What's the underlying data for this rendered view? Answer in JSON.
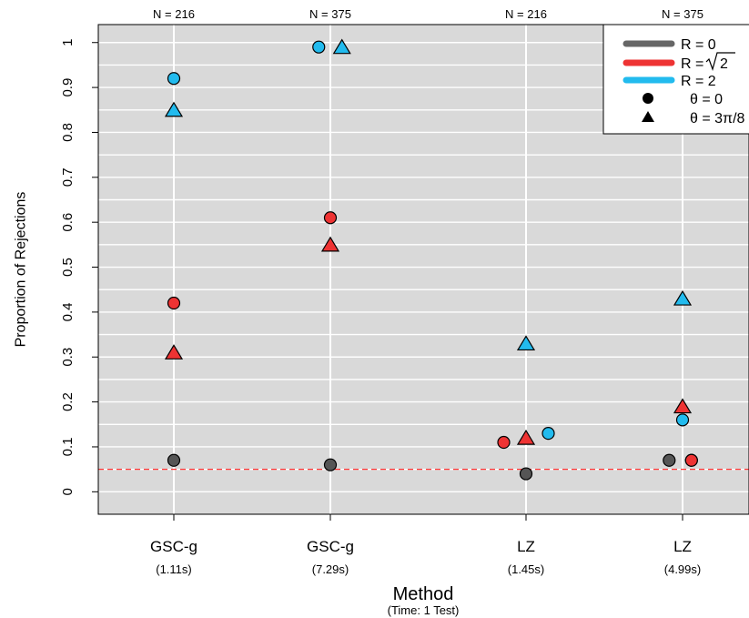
{
  "chart_data": {
    "type": "scatter",
    "xlabel": "Method",
    "xlabel_sub": "(Time: 1 Test)",
    "ylabel": "Proportion of Rejections",
    "ylim": [
      -0.05,
      1.04
    ],
    "yticks": [
      0,
      0.1,
      0.2,
      0.3,
      0.4,
      0.5,
      0.6,
      0.7,
      0.8,
      0.9,
      1
    ],
    "reference_line": {
      "y": 0.05,
      "color": "#ff3333",
      "style": "dashed"
    },
    "background": "#d9d9d9",
    "grid": true,
    "legend_position": "top-right",
    "groups": [
      {
        "method": "GSC-g",
        "time": "(1.11s)",
        "n_label": "N = 216"
      },
      {
        "method": "GSC-g",
        "time": "(7.29s)",
        "n_label": "N = 375"
      },
      {
        "method": "LZ",
        "time": "(1.45s)",
        "n_label": "N = 216"
      },
      {
        "method": "LZ",
        "time": "(4.99s)",
        "n_label": "N = 375"
      }
    ],
    "series": [
      {
        "name": "R = 0",
        "color": "#555555",
        "points": [
          {
            "group": 0,
            "theta": "circle",
            "y": 0.07,
            "dx": 0
          },
          {
            "group": 1,
            "theta": "circle",
            "y": 0.06,
            "dx": 0
          },
          {
            "group": 2,
            "theta": "circle",
            "y": 0.04,
            "dx": 0
          },
          {
            "group": 3,
            "theta": "circle",
            "y": 0.07,
            "dx": -0.15
          },
          {
            "group": 3,
            "theta": "circle",
            "y": 0.07,
            "dx": 0.1
          }
        ]
      },
      {
        "name": "R = √2",
        "color": "#ee3333",
        "points": [
          {
            "group": 0,
            "theta": "circle",
            "y": 0.42,
            "dx": 0
          },
          {
            "group": 0,
            "theta": "triangle",
            "y": 0.31,
            "dx": 0
          },
          {
            "group": 1,
            "theta": "circle",
            "y": 0.61,
            "dx": 0
          },
          {
            "group": 1,
            "theta": "triangle",
            "y": 0.55,
            "dx": 0
          },
          {
            "group": 2,
            "theta": "circle",
            "y": 0.11,
            "dx": -0.25
          },
          {
            "group": 2,
            "theta": "triangle",
            "y": 0.12,
            "dx": 0
          },
          {
            "group": 3,
            "theta": "triangle",
            "y": 0.19,
            "dx": 0
          },
          {
            "group": 3,
            "theta": "circle",
            "y": 0.07,
            "dx": 0.1
          }
        ]
      },
      {
        "name": "R = 2",
        "color": "#22bbee",
        "points": [
          {
            "group": 0,
            "theta": "circle",
            "y": 0.92,
            "dx": 0
          },
          {
            "group": 0,
            "theta": "triangle",
            "y": 0.85,
            "dx": 0
          },
          {
            "group": 1,
            "theta": "circle",
            "y": 0.99,
            "dx": -0.13
          },
          {
            "group": 1,
            "theta": "triangle",
            "y": 0.99,
            "dx": 0.13
          },
          {
            "group": 2,
            "theta": "triangle",
            "y": 0.33,
            "dx": 0
          },
          {
            "group": 2,
            "theta": "circle",
            "y": 0.13,
            "dx": 0.25
          },
          {
            "group": 3,
            "theta": "triangle",
            "y": 0.43,
            "dx": 0
          },
          {
            "group": 3,
            "theta": "circle",
            "y": 0.16,
            "dx": 0
          }
        ]
      }
    ],
    "legend": {
      "r0": "R = 0",
      "r_sqrt2_prefix": "R = ",
      "r_sqrt2_value": "2",
      "r2": "R = 2",
      "theta0": "θ = 0",
      "theta_3pi8": "θ = 3π/8",
      "r0_color": "#666666",
      "r_sqrt2_color": "#ee3333",
      "r2_color": "#22bbee"
    }
  }
}
